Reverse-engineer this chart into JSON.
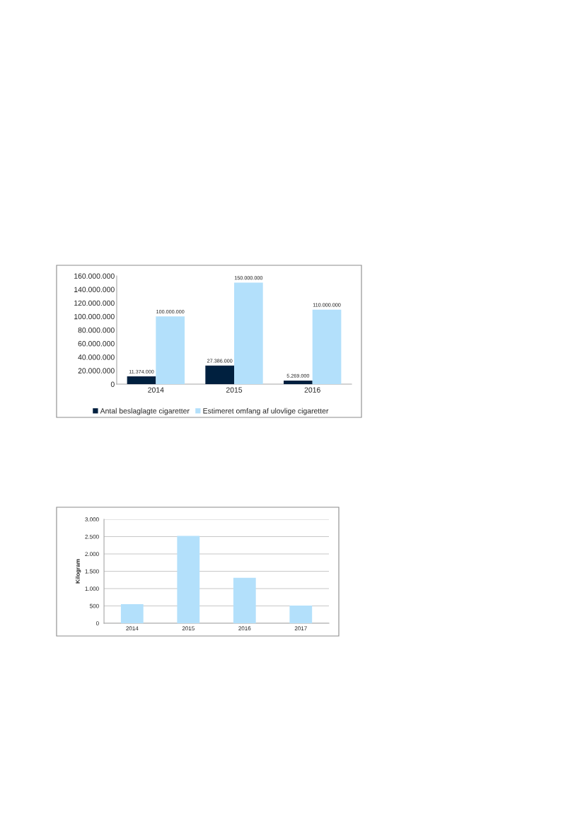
{
  "chart_data": [
    {
      "type": "bar",
      "categories": [
        "2014",
        "2015",
        "2016"
      ],
      "series": [
        {
          "name": "Antal beslaglagte cigaretter",
          "color": "#00203f",
          "values": [
            11374000,
            27386000,
            5269000
          ],
          "value_labels": [
            "11.374.000",
            "27.386.000",
            "5.269.000"
          ]
        },
        {
          "name": "Estimeret omfang af ulovlige cigaretter",
          "color": "#b3e0fb",
          "values": [
            100000000,
            150000000,
            110000000
          ],
          "value_labels": [
            "100.000.000",
            "150.000.000",
            "110.000.000"
          ]
        }
      ],
      "ylim": [
        0,
        160000000
      ],
      "yticks": [
        0,
        {
          "value": 20000000,
          "label": "20.000.000"
        },
        {
          "value": 40000000,
          "label": "40.000.000"
        },
        {
          "value": 60000000,
          "label": "60.000.000"
        },
        {
          "value": 80000000,
          "label": "80.000.000"
        },
        {
          "value": 100000000,
          "label": "100.000.000"
        },
        {
          "value": 120000000,
          "label": "120.000.000"
        },
        {
          "value": 140000000,
          "label": "140.000.000"
        },
        {
          "value": 160000000,
          "label": "160.000.000"
        }
      ],
      "legend": "bottom",
      "grid": false
    },
    {
      "type": "bar",
      "categories": [
        "2014",
        "2015",
        "2016",
        "2017"
      ],
      "values": [
        550,
        2520,
        1310,
        510
      ],
      "color": "#b3e0fb",
      "ylabel": "Kilogram",
      "ylim": [
        0,
        3000
      ],
      "yticks": [
        0,
        500,
        {
          "value": 1000,
          "label": "1.000"
        },
        {
          "value": 1500,
          "label": "1.500"
        },
        {
          "value": 2000,
          "label": "2.000"
        },
        {
          "value": 2500,
          "label": "2.500"
        },
        {
          "value": 3000,
          "label": "3.000"
        }
      ],
      "grid": "y"
    }
  ]
}
